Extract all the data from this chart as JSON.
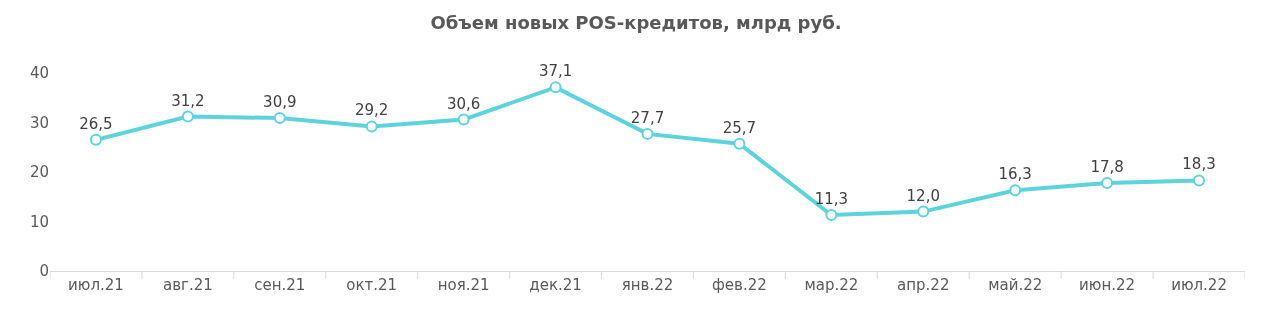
{
  "chart_data": {
    "type": "line",
    "title": "Объем новых POS-кредитов, млрд руб.",
    "categories": [
      "июл.21",
      "авг.21",
      "сен.21",
      "окт.21",
      "ноя.21",
      "дек.21",
      "янв.22",
      "фев.22",
      "мар.22",
      "апр.22",
      "май.22",
      "июн.22",
      "июл.22"
    ],
    "series": [
      {
        "color": "#5dd3dc",
        "values": [
          26.5,
          31.2,
          30.9,
          29.2,
          30.6,
          37.1,
          27.7,
          25.7,
          11.3,
          12.0,
          16.3,
          17.8,
          18.3
        ],
        "value_labels": [
          "26,5",
          "31,2",
          "30,9",
          "29,2",
          "30,6",
          "37,1",
          "27,7",
          "25,7",
          "11,3",
          "12,0",
          "16,3",
          "17,8",
          "18,3"
        ]
      }
    ],
    "ylim": [
      0,
      40
    ],
    "yticks": [
      0,
      10,
      20,
      30,
      40
    ],
    "legend": false,
    "marker": "circle",
    "line_style": "solid"
  }
}
